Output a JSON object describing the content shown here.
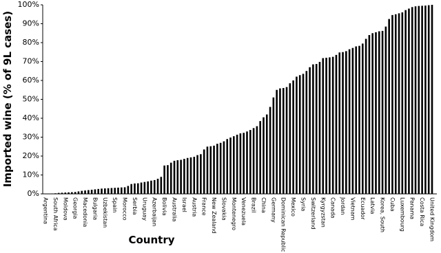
{
  "chart_data": {
    "type": "bar",
    "x_label": "Country",
    "y_label": "Imported wine (% of 9L cases)",
    "color": "#000000",
    "grid": false,
    "ylim": [
      0,
      100
    ],
    "yticks": [
      {
        "value": 0,
        "label": "0%"
      },
      {
        "value": 10,
        "label": "10%"
      },
      {
        "value": 20,
        "label": "20%"
      },
      {
        "value": 30,
        "label": "30%"
      },
      {
        "value": 40,
        "label": "40%"
      },
      {
        "value": 50,
        "label": "50%"
      },
      {
        "value": 60,
        "label": "60%"
      },
      {
        "value": 70,
        "label": "70%"
      },
      {
        "value": 80,
        "label": "80%"
      },
      {
        "value": 90,
        "label": "90%"
      },
      {
        "value": 100,
        "label": "100%"
      }
    ],
    "categories": [
      "Argentina",
      null,
      null,
      "South Africa",
      null,
      null,
      "Moldova",
      null,
      null,
      "Georgia",
      null,
      null,
      "Macedonia",
      null,
      null,
      "Bulgaria",
      null,
      null,
      "Uzbekistan",
      null,
      null,
      "Spain",
      null,
      null,
      "Morocco",
      null,
      null,
      "Serbia",
      null,
      null,
      "Uruguay",
      null,
      null,
      "Azerbaijan",
      null,
      null,
      "Bolivia",
      null,
      null,
      "Australia",
      null,
      null,
      "Israel",
      null,
      null,
      "Austria",
      null,
      null,
      "France",
      null,
      null,
      "New Zealand",
      null,
      null,
      "Slovakia",
      null,
      null,
      "Montenegro",
      null,
      null,
      "Venezuela",
      null,
      null,
      "Brazil",
      null,
      null,
      "China",
      null,
      null,
      "Germany",
      null,
      null,
      "Dominican Republic",
      null,
      null,
      "Mexico",
      null,
      null,
      "Syria",
      null,
      null,
      "Switzerland",
      null,
      null,
      "Kyrgyzstan",
      null,
      null,
      "Canada",
      null,
      null,
      "Jordan",
      null,
      null,
      "Vietnam",
      null,
      null,
      "Ecuador",
      null,
      null,
      "Latvia",
      null,
      null,
      "Korea, South",
      null,
      null,
      "Cuba",
      null,
      null,
      "Luxembourg",
      null,
      null,
      "Panama",
      null,
      null,
      "Costa Rica",
      null,
      null,
      "United Kingdom"
    ],
    "values": [
      0.1,
      0.1,
      0.2,
      0.3,
      0.5,
      0.6,
      0.7,
      0.8,
      0.9,
      1.0,
      1.3,
      1.6,
      1.8,
      2.0,
      2.2,
      2.4,
      2.6,
      2.8,
      2.9,
      3.0,
      3.1,
      3.2,
      3.3,
      3.4,
      3.5,
      4.2,
      5.2,
      5.5,
      5.6,
      6.0,
      6.3,
      6.6,
      7.0,
      7.3,
      8.0,
      9.0,
      15.0,
      15.2,
      16.5,
      17.5,
      17.8,
      18.0,
      18.5,
      19.0,
      19.3,
      19.6,
      20.5,
      21.0,
      23.5,
      25.0,
      25.2,
      25.5,
      26.5,
      27.0,
      27.8,
      29.0,
      29.8,
      30.5,
      31.3,
      32.0,
      32.3,
      33.0,
      33.8,
      34.8,
      35.8,
      38.5,
      40.5,
      42.0,
      46.0,
      51.0,
      55.0,
      55.8,
      56.0,
      56.5,
      58.5,
      60.0,
      62.0,
      62.8,
      63.5,
      65.0,
      67.0,
      68.5,
      68.7,
      69.8,
      71.8,
      72.0,
      72.2,
      72.5,
      73.5,
      74.8,
      75.0,
      75.5,
      76.5,
      77.2,
      78.0,
      78.3,
      79.5,
      82.0,
      84.0,
      85.0,
      85.5,
      86.0,
      86.2,
      88.5,
      92.5,
      94.6,
      95.0,
      95.5,
      96.0,
      97.2,
      98.0,
      98.8,
      99.2,
      99.4,
      99.5,
      99.6,
      99.8,
      100.0
    ]
  }
}
